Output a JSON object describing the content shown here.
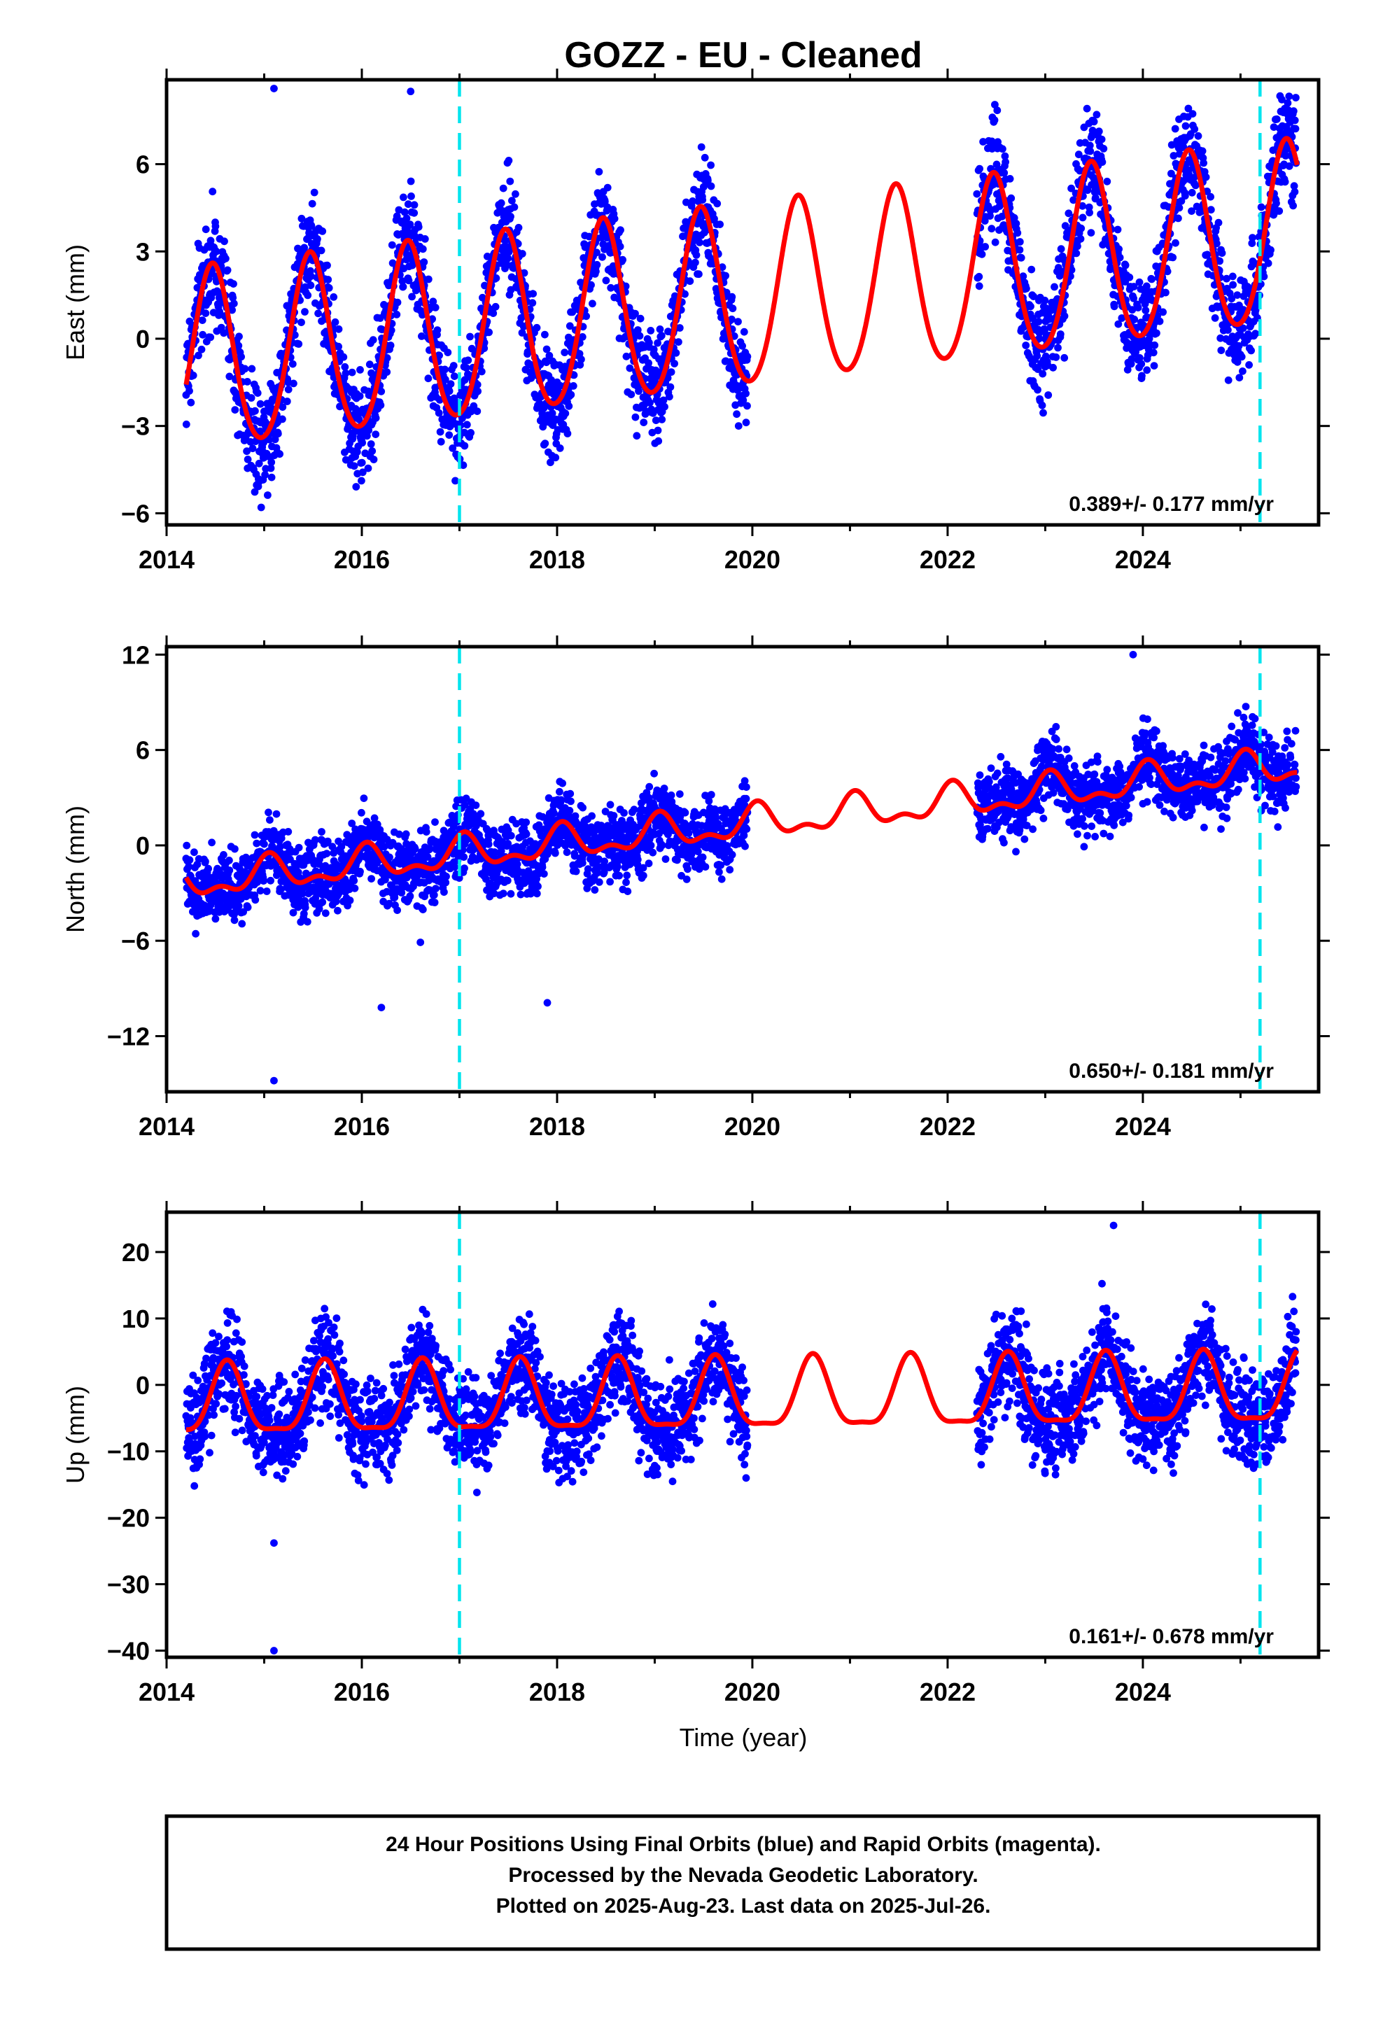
{
  "title": "GOZZ  - EU - Cleaned",
  "xlabel": "Time (year)",
  "caption": [
    "24 Hour Positions Using Final Orbits (blue) and Rapid Orbits (magenta).",
    "Processed by the Nevada Geodetic Laboratory.",
    "Plotted on 2025-Aug-23. Last data on 2025-Jul-26."
  ],
  "colors": {
    "data": "#0000ff",
    "model": "#ff0000",
    "break": "#00e5ee",
    "frame": "#000000"
  },
  "chart_data": [
    {
      "type": "scatter",
      "ylabel": "East (mm)",
      "rate": "0.389+/- 0.177 mm/yr",
      "xlim": [
        2014,
        2025.8
      ],
      "ylim": [
        -6.4,
        8.9
      ],
      "xticks": [
        2014,
        2016,
        2018,
        2020,
        2022,
        2024
      ],
      "yticks": [
        -6,
        -3,
        0,
        3,
        6
      ],
      "breaks": [
        2017.0,
        2025.2
      ],
      "data_segments": [
        [
          2014.2,
          2019.95
        ],
        [
          2022.3,
          2025.57
        ]
      ],
      "model": {
        "offset": -0.9,
        "trend": 0.389,
        "annual_amp": 3.1,
        "annual_phase_peak": 0.47,
        "semiannual_amp": 0.3,
        "scatter": 0.9
      },
      "outliers": [
        [
          2015.1,
          8.6
        ],
        [
          2016.5,
          8.5
        ]
      ]
    },
    {
      "type": "scatter",
      "ylabel": "North (mm)",
      "rate": "0.650+/- 0.181 mm/yr",
      "xlim": [
        2014,
        2025.8
      ],
      "ylim": [
        -15.5,
        12.5
      ],
      "xticks": [
        2014,
        2016,
        2018,
        2020,
        2022,
        2024
      ],
      "yticks": [
        -12,
        -6,
        0,
        6,
        12
      ],
      "breaks": [
        2017.0,
        2025.2
      ],
      "data_segments": [
        [
          2014.2,
          2019.95
        ],
        [
          2022.3,
          2025.57
        ]
      ],
      "model": {
        "offset": -2.4,
        "trend": 0.65,
        "annual_amp": 0.9,
        "annual_phase_peak": 0.05,
        "semiannual_amp": 0.5,
        "scatter": 1.1
      },
      "outliers": [
        [
          2015.1,
          -14.8
        ],
        [
          2016.2,
          -10.2
        ],
        [
          2017.9,
          -9.9
        ],
        [
          2016.6,
          -6.1
        ],
        [
          2023.9,
          12.0
        ]
      ]
    },
    {
      "type": "scatter",
      "ylabel": "Up (mm)",
      "rate": "0.161+/- 0.678 mm/yr",
      "xlim": [
        2014,
        2025.8
      ],
      "ylim": [
        -41,
        26
      ],
      "xticks": [
        2014,
        2016,
        2018,
        2020,
        2022,
        2024
      ],
      "yticks": [
        -40,
        -30,
        -20,
        -10,
        0,
        10,
        20
      ],
      "breaks": [
        2017.0,
        2025.2
      ],
      "data_segments": [
        [
          2014.2,
          2019.95
        ],
        [
          2022.3,
          2025.57
        ]
      ],
      "model": {
        "offset": -3.0,
        "trend": 0.161,
        "annual_amp": 5.2,
        "annual_phase_peak": 0.62,
        "semiannual_amp": 1.5,
        "scatter": 3.6
      },
      "outliers": [
        [
          2015.1,
          -40.0
        ],
        [
          2015.1,
          -23.8
        ],
        [
          2023.7,
          24.0
        ]
      ]
    }
  ]
}
